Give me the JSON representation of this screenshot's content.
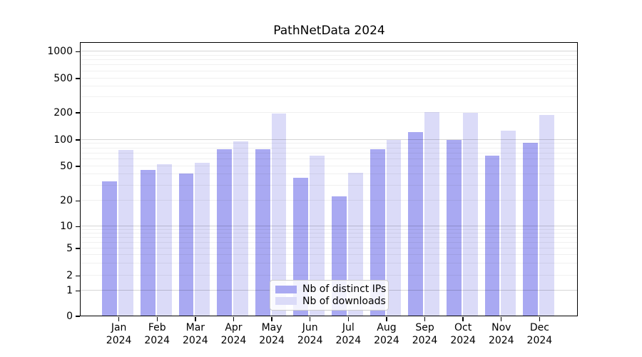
{
  "chart": {
    "title": "PathNetData 2024",
    "chart_data": {
      "type": "bar",
      "title": "PathNetData 2024",
      "xlabel": "",
      "ylabel": "",
      "yscale": "symlog-like (0,1,2,5,10,20,50,100,200,500,1000)",
      "grid": true,
      "legend_position": "lower center",
      "ylim": [
        0,
        1250
      ],
      "yticks": [
        0,
        1,
        2,
        5,
        10,
        20,
        50,
        100,
        200,
        500,
        1000
      ],
      "ytick_labels": [
        "0",
        "1",
        "2",
        "5",
        "10",
        "20",
        "50",
        "100",
        "200",
        "500",
        "1000"
      ],
      "categories": [
        "Jan",
        "Feb",
        "Mar",
        "Apr",
        "May",
        "Jun",
        "Jul",
        "Aug",
        "Sep",
        "Oct",
        "Nov",
        "Dec"
      ],
      "category_year": "2024",
      "series": [
        {
          "name": "Nb of distinct IPs",
          "color": "#a9a9f2",
          "values": [
            33,
            44,
            40,
            76,
            77,
            36,
            22,
            77,
            120,
            97,
            65,
            91
          ]
        },
        {
          "name": "Nb of downloads",
          "color": "#dbdbf8",
          "values": [
            75,
            52,
            53,
            93,
            193,
            64,
            41,
            97,
            199,
            196,
            124,
            184
          ]
        }
      ]
    }
  }
}
